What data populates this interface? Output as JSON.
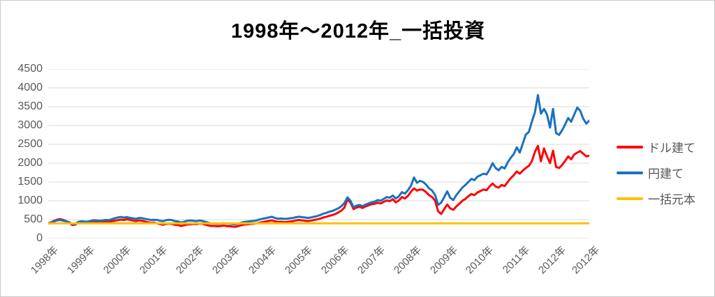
{
  "title": "1998年～2012年_一括投資",
  "colors": {
    "dollar_series": "#fe0000",
    "yen_series": "#1a70c0",
    "principal_series": "#ffc000",
    "gridline": "#d9d9d9",
    "axis_text": "#595959"
  },
  "legend": {
    "items": [
      {
        "label": "ドル建て",
        "color": "#fe0000"
      },
      {
        "label": "円建て",
        "color": "#1a70c0"
      },
      {
        "label": "一括元本",
        "color": "#ffc000"
      }
    ]
  },
  "chart_data": {
    "type": "line",
    "title": "1998年～2012年_一括投資",
    "xlabel": "",
    "ylabel": "",
    "ylim": [
      0,
      4500
    ],
    "y_ticks": [
      0,
      500,
      1000,
      1500,
      2000,
      2500,
      3000,
      3500,
      4000,
      4500
    ],
    "grid": "horizontal-only",
    "legend_position": "right",
    "x_unit": "month",
    "x_range_note": "monthly points, Jan 1998 through Dec 2012",
    "x_tick_labels": [
      "1998年",
      "1999年",
      "2000年",
      "2001年",
      "2002年",
      "2003年",
      "2004年",
      "2005年",
      "2006年",
      "2007年",
      "2008年",
      "2009年",
      "2010年",
      "2011年",
      "2012年",
      "2012年"
    ],
    "x_tick_month_indices": [
      0,
      12,
      24,
      36,
      48,
      60,
      72,
      84,
      96,
      108,
      120,
      132,
      144,
      156,
      168,
      179
    ],
    "series": [
      {
        "name": "ドル建て",
        "color": "#fe0000",
        "style": "line",
        "values": [
          405,
          430,
          470,
          500,
          515,
          490,
          460,
          420,
          355,
          370,
          420,
          440,
          430,
          425,
          445,
          460,
          450,
          440,
          445,
          450,
          440,
          455,
          470,
          485,
          500,
          490,
          510,
          495,
          475,
          460,
          480,
          470,
          450,
          430,
          415,
          420,
          400,
          380,
          365,
          385,
          395,
          385,
          360,
          355,
          330,
          350,
          370,
          375,
          385,
          380,
          395,
          390,
          365,
          345,
          330,
          335,
          320,
          330,
          340,
          330,
          325,
          315,
          310,
          330,
          355,
          370,
          375,
          385,
          390,
          400,
          420,
          435,
          450,
          465,
          480,
          455,
          440,
          445,
          435,
          440,
          450,
          460,
          480,
          490,
          480,
          470,
          460,
          475,
          490,
          505,
          530,
          555,
          575,
          600,
          620,
          650,
          690,
          740,
          820,
          1040,
          950,
          780,
          820,
          840,
          810,
          850,
          880,
          910,
          920,
          950,
          930,
          970,
          1010,
          990,
          1040,
          960,
          1010,
          1100,
          1060,
          1130,
          1240,
          1330,
          1270,
          1300,
          1290,
          1230,
          1150,
          1100,
          1000,
          720,
          650,
          780,
          900,
          800,
          760,
          850,
          920,
          1000,
          1050,
          1120,
          1180,
          1150,
          1220,
          1260,
          1300,
          1280,
          1380,
          1460,
          1380,
          1350,
          1420,
          1390,
          1500,
          1600,
          1680,
          1780,
          1720,
          1800,
          1870,
          1930,
          2050,
          2300,
          2460,
          2050,
          2390,
          2180,
          2000,
          2330,
          1900,
          1870,
          1950,
          2060,
          2180,
          2100,
          2230,
          2280,
          2320,
          2250,
          2180,
          2200
        ]
      },
      {
        "name": "円建て",
        "color": "#1a70c0",
        "style": "line",
        "values": [
          395,
          420,
          455,
          480,
          490,
          470,
          455,
          430,
          380,
          390,
          440,
          455,
          450,
          445,
          465,
          485,
          480,
          470,
          480,
          490,
          485,
          510,
          535,
          555,
          570,
          555,
          565,
          550,
          535,
          520,
          545,
          540,
          520,
          505,
          490,
          495,
          490,
          470,
          460,
          485,
          495,
          485,
          460,
          450,
          420,
          445,
          470,
          475,
          470,
          460,
          475,
          465,
          440,
          415,
          395,
          400,
          385,
          390,
          405,
          395,
          390,
          380,
          375,
          395,
          420,
          440,
          450,
          460,
          465,
          480,
          505,
          525,
          540,
          560,
          575,
          545,
          525,
          530,
          520,
          525,
          535,
          545,
          565,
          575,
          565,
          555,
          545,
          560,
          575,
          595,
          625,
          655,
          680,
          710,
          730,
          765,
          800,
          855,
          940,
          1090,
          1000,
          830,
          870,
          890,
          860,
          900,
          930,
          960,
          980,
          1020,
          1000,
          1050,
          1100,
          1080,
          1140,
          1060,
          1120,
          1230,
          1190,
          1280,
          1400,
          1620,
          1480,
          1530,
          1500,
          1430,
          1330,
          1270,
          1150,
          890,
          950,
          1100,
          1250,
          1080,
          1020,
          1150,
          1250,
          1350,
          1420,
          1500,
          1580,
          1550,
          1640,
          1680,
          1720,
          1700,
          1830,
          2000,
          1870,
          1810,
          1900,
          1860,
          2020,
          2140,
          2240,
          2420,
          2280,
          2520,
          2760,
          2830,
          3100,
          3350,
          3810,
          3315,
          3440,
          3290,
          2945,
          3440,
          2800,
          2750,
          2870,
          3030,
          3200,
          3100,
          3290,
          3475,
          3390,
          3180,
          3050,
          3130
        ]
      },
      {
        "name": "一括元本",
        "color": "#ffc000",
        "style": "constant-line",
        "value": 400
      }
    ]
  }
}
